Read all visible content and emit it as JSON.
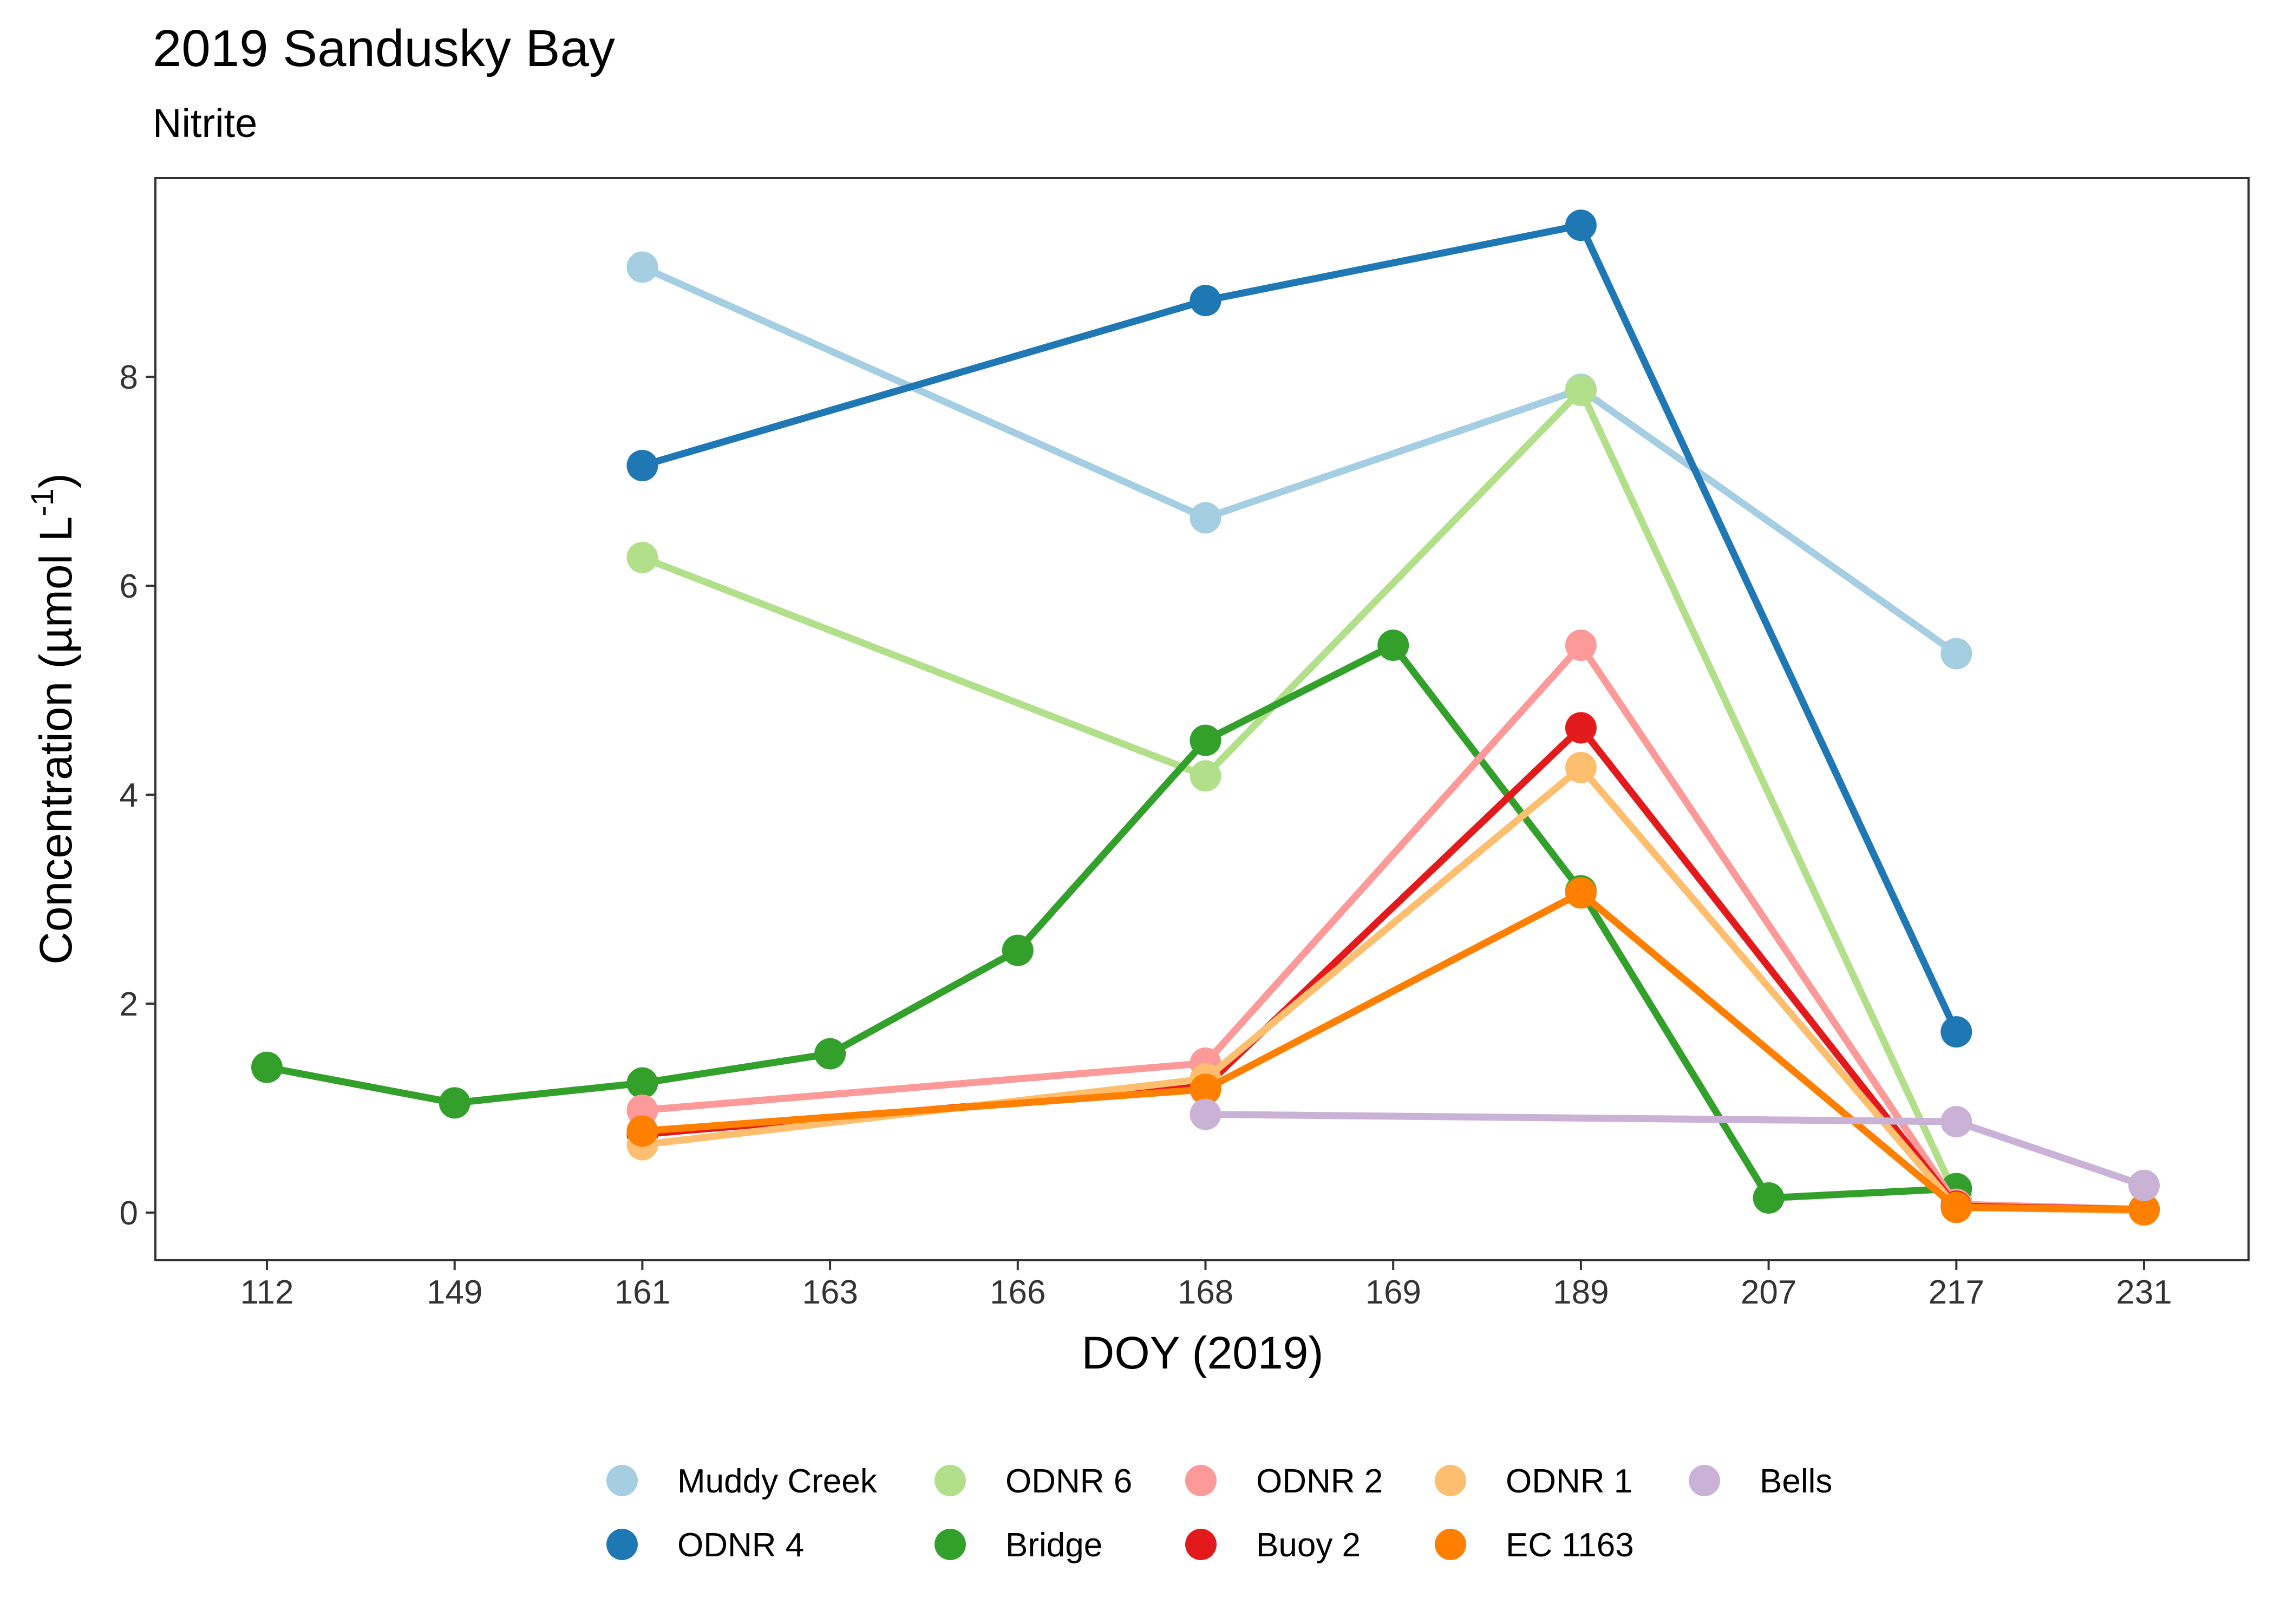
{
  "chart_data": {
    "type": "line",
    "title": "2019 Sandusky Bay",
    "subtitle": "Nitrite",
    "xlabel": "DOY (2019)",
    "ylabel": "Concentration (µmol L",
    "ylabel_sup": "-1",
    "ylabel_close": ")",
    "categories": [
      "112",
      "149",
      "161",
      "163",
      "166",
      "168",
      "169",
      "189",
      "207",
      "217",
      "231"
    ],
    "ylim": [
      -0.42,
      9.85
    ],
    "yticks": [
      0,
      2,
      4,
      6,
      8
    ],
    "x_scale": "categorical (discrete DOY)",
    "grid": false,
    "legend_position": "bottom",
    "series": [
      {
        "name": "Muddy Creek",
        "color": "#A6CEE3",
        "points": [
          [
            "161",
            9.05
          ],
          [
            "168",
            6.65
          ],
          [
            "189",
            7.88
          ],
          [
            "217",
            5.35
          ]
        ]
      },
      {
        "name": "ODNR 4",
        "color": "#1F78B4",
        "points": [
          [
            "161",
            7.15
          ],
          [
            "168",
            8.73
          ],
          [
            "189",
            9.45
          ],
          [
            "217",
            1.73
          ]
        ]
      },
      {
        "name": "ODNR 6",
        "color": "#B2DF8A",
        "points": [
          [
            "161",
            6.27
          ],
          [
            "168",
            4.18
          ],
          [
            "189",
            7.87
          ],
          [
            "217",
            0.15
          ]
        ]
      },
      {
        "name": "Bridge",
        "color": "#33A02C",
        "points": [
          [
            "112",
            1.39
          ],
          [
            "149",
            1.05
          ],
          [
            "161",
            1.24
          ],
          [
            "163",
            1.52
          ],
          [
            "166",
            2.51
          ],
          [
            "168",
            4.52
          ],
          [
            "169",
            5.43
          ],
          [
            "189",
            3.08
          ],
          [
            "207",
            0.14
          ],
          [
            "217",
            0.23
          ]
        ]
      },
      {
        "name": "ODNR 2",
        "color": "#FB9A99",
        "points": [
          [
            "161",
            0.98
          ],
          [
            "168",
            1.43
          ],
          [
            "189",
            5.43
          ],
          [
            "217",
            0.08
          ],
          [
            "231",
            0.03
          ]
        ]
      },
      {
        "name": "Buoy 2",
        "color": "#E31A1C",
        "points": [
          [
            "161",
            0.75
          ],
          [
            "168",
            1.21
          ],
          [
            "189",
            4.64
          ],
          [
            "217",
            0.06
          ],
          [
            "231",
            0.03
          ]
        ]
      },
      {
        "name": "ODNR 1",
        "color": "#FDBF6F",
        "points": [
          [
            "161",
            0.65
          ],
          [
            "168",
            1.28
          ],
          [
            "189",
            4.26
          ],
          [
            "217",
            0.05
          ],
          [
            "231",
            0.02
          ]
        ]
      },
      {
        "name": "EC 1163",
        "color": "#FF7F00",
        "points": [
          [
            "161",
            0.78
          ],
          [
            "168",
            1.18
          ],
          [
            "189",
            3.06
          ],
          [
            "217",
            0.05
          ],
          [
            "231",
            0.03
          ]
        ]
      },
      {
        "name": "Bells",
        "color": "#CAB2D6",
        "points": [
          [
            "168",
            0.94
          ],
          [
            "217",
            0.87
          ],
          [
            "231",
            0.26
          ]
        ]
      }
    ],
    "legend_rows": [
      [
        "Muddy Creek",
        "ODNR 6",
        "ODNR 2",
        "ODNR 1",
        "Bells"
      ],
      [
        "ODNR 4",
        "Bridge",
        "Buoy 2",
        "EC 1163"
      ]
    ]
  }
}
